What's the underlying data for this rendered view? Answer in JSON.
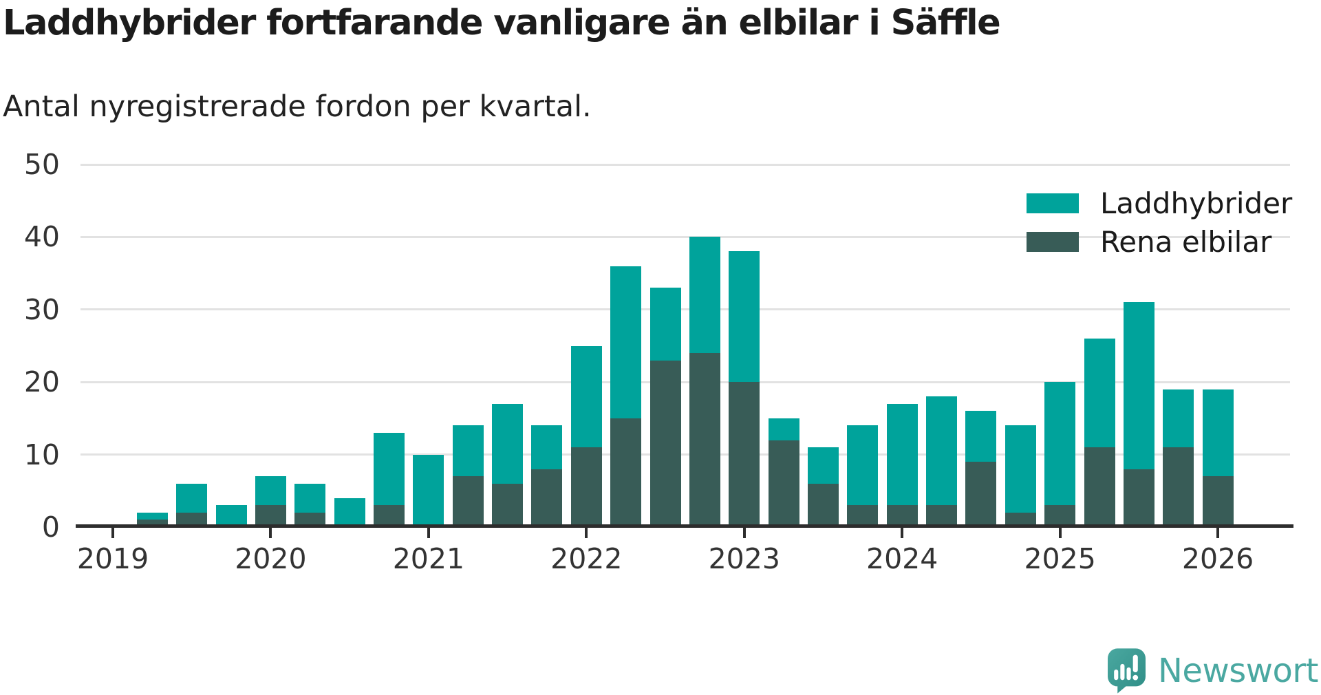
{
  "header": {
    "title": "Laddhybrider fortfarande vanligare än elbilar i Säffle",
    "subtitle": "Antal nyregistrerade fordon per kvartal."
  },
  "legend": [
    {
      "label": "Laddhybrider",
      "color": "#00a39b"
    },
    {
      "label": "Rena elbilar",
      "color": "#385c57"
    }
  ],
  "branding": {
    "name": "Newsworthy",
    "icon": "newsworthy-speech-bubble-chart-icon",
    "color": "#4aa8a1"
  },
  "colors": {
    "laddhybrider": "#00a39b",
    "rena_elbilar": "#385c57",
    "gridline": "#e2e2e2",
    "axis": "#2d2d2d",
    "text": "#333333"
  },
  "chart_data": {
    "type": "bar",
    "stacked": true,
    "title": "Laddhybrider fortfarande vanligare än elbilar i Säffle",
    "subtitle": "Antal nyregistrerade fordon per kvartal.",
    "grid": "horizontal",
    "legend_position": "top-right",
    "ylim": [
      0,
      50
    ],
    "yticks": [
      0,
      10,
      20,
      30,
      40,
      50
    ],
    "quarters": [
      "2019Q1",
      "2019Q2",
      "2019Q3",
      "2019Q4",
      "2020Q1",
      "2020Q2",
      "2020Q3",
      "2020Q4",
      "2021Q1",
      "2021Q2",
      "2021Q3",
      "2021Q4",
      "2022Q1",
      "2022Q2",
      "2022Q3",
      "2022Q4",
      "2023Q1",
      "2023Q2",
      "2023Q3",
      "2023Q4",
      "2024Q1",
      "2024Q2",
      "2024Q3",
      "2024Q4",
      "2025Q1",
      "2025Q2",
      "2025Q3",
      "2025Q4",
      "2026Q1"
    ],
    "xticks": [
      {
        "label": "2019",
        "index": 0
      },
      {
        "label": "2020",
        "index": 4
      },
      {
        "label": "2021",
        "index": 8
      },
      {
        "label": "2022",
        "index": 12
      },
      {
        "label": "2023",
        "index": 16
      },
      {
        "label": "2024",
        "index": 20
      },
      {
        "label": "2025",
        "index": 24
      },
      {
        "label": "2026",
        "index": 28
      }
    ],
    "series": [
      {
        "name": "Rena elbilar",
        "color": "#385c57",
        "stack_order": "bottom",
        "values": [
          0,
          1,
          2,
          0,
          3,
          2,
          0,
          3,
          0,
          7,
          6,
          8,
          11,
          15,
          23,
          24,
          20,
          12,
          6,
          3,
          3,
          3,
          9,
          2,
          3,
          11,
          8,
          11,
          7
        ]
      },
      {
        "name": "Laddhybrider",
        "color": "#00a39b",
        "stack_order": "top",
        "values": [
          0,
          1,
          4,
          3,
          4,
          4,
          4,
          10,
          10,
          7,
          11,
          6,
          14,
          21,
          10,
          16,
          18,
          3,
          5,
          11,
          14,
          15,
          7,
          12,
          17,
          15,
          23,
          8,
          12
        ]
      }
    ],
    "stacked_totals": [
      0,
      2,
      6,
      3,
      7,
      6,
      4,
      13,
      10,
      14,
      17,
      14,
      25,
      36,
      33,
      40,
      38,
      15,
      11,
      14,
      17,
      18,
      16,
      14,
      20,
      26,
      31,
      19,
      19
    ]
  }
}
